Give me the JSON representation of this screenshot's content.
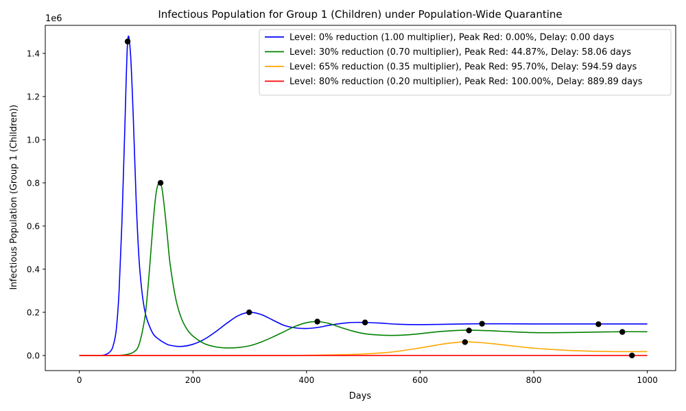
{
  "chart_data": {
    "type": "line",
    "title": "Infectious Population for Group 1 (Children) under Population-Wide Quarantine",
    "xlabel": "Days",
    "ylabel": "Infectious Population (Group 1 (Children))",
    "y_offset_label": "1e6",
    "xlim": [
      -60,
      1050
    ],
    "ylim": [
      -0.07,
      1.53
    ],
    "x_ticks": [
      0,
      200,
      400,
      600,
      800,
      1000
    ],
    "x_tick_labels": [
      "0",
      "200",
      "400",
      "600",
      "800",
      "1000"
    ],
    "y_ticks": [
      0.0,
      0.2,
      0.4,
      0.6,
      0.8,
      1.0,
      1.2,
      1.4
    ],
    "y_tick_labels": [
      "0.0",
      "0.2",
      "0.4",
      "0.6",
      "0.8",
      "1.0",
      "1.2",
      "1.4"
    ],
    "grid": false,
    "legend_position": "top-right",
    "series": [
      {
        "name": "Level: 0% reduction (1.00 multiplier), Peak Red: 0.00%, Delay: 0.00 days",
        "color": "#0000ff",
        "x": [
          0,
          30,
          45,
          55,
          60,
          65,
          70,
          75,
          80,
          85,
          90,
          95,
          100,
          105,
          110,
          115,
          120,
          130,
          140,
          150,
          160,
          180,
          200,
          220,
          240,
          260,
          280,
          300,
          320,
          340,
          360,
          380,
          400,
          420,
          440,
          460,
          480,
          500,
          530,
          560,
          600,
          650,
          700,
          750,
          800,
          850,
          900,
          950,
          1000
        ],
        "y": [
          0.0,
          0.0,
          0.003,
          0.02,
          0.05,
          0.12,
          0.3,
          0.62,
          1.05,
          1.455,
          1.4,
          1.1,
          0.72,
          0.45,
          0.3,
          0.21,
          0.16,
          0.1,
          0.075,
          0.058,
          0.047,
          0.042,
          0.052,
          0.075,
          0.11,
          0.15,
          0.185,
          0.2,
          0.19,
          0.165,
          0.14,
          0.128,
          0.125,
          0.13,
          0.14,
          0.148,
          0.153,
          0.153,
          0.15,
          0.145,
          0.143,
          0.145,
          0.147,
          0.147,
          0.146,
          0.146,
          0.146,
          0.146,
          0.146
        ]
      },
      {
        "name": "Level: 30% reduction (0.70 multiplier), Peak Red: 44.87%, Delay: 58.06 days",
        "color": "#008000",
        "x": [
          0,
          60,
          80,
          95,
          105,
          115,
          120,
          125,
          130,
          135,
          140,
          145,
          150,
          155,
          160,
          170,
          180,
          190,
          200,
          220,
          240,
          260,
          280,
          300,
          320,
          340,
          360,
          380,
          400,
          420,
          440,
          460,
          480,
          500,
          520,
          550,
          580,
          610,
          640,
          680,
          720,
          760,
          800,
          850,
          900,
          950,
          1000
        ],
        "y": [
          0.0,
          0.0,
          0.003,
          0.015,
          0.05,
          0.17,
          0.29,
          0.45,
          0.62,
          0.75,
          0.8,
          0.78,
          0.68,
          0.55,
          0.42,
          0.26,
          0.17,
          0.12,
          0.09,
          0.055,
          0.04,
          0.035,
          0.037,
          0.045,
          0.062,
          0.085,
          0.11,
          0.135,
          0.152,
          0.157,
          0.148,
          0.13,
          0.114,
          0.102,
          0.096,
          0.093,
          0.096,
          0.104,
          0.112,
          0.117,
          0.115,
          0.11,
          0.106,
          0.106,
          0.108,
          0.11,
          0.11
        ]
      },
      {
        "name": "Level: 65% reduction (0.35 multiplier), Peak Red: 95.70%, Delay: 594.59 days",
        "color": "#ffa500",
        "x": [
          0,
          200,
          350,
          400,
          450,
          500,
          550,
          600,
          640,
          670,
          680,
          700,
          730,
          760,
          800,
          850,
          900,
          950,
          1000
        ],
        "y": [
          0.0,
          0.0,
          0.0,
          0.001,
          0.003,
          0.007,
          0.016,
          0.035,
          0.053,
          0.062,
          0.063,
          0.061,
          0.054,
          0.045,
          0.034,
          0.025,
          0.02,
          0.018,
          0.018
        ]
      },
      {
        "name": "Level: 80% reduction (0.20 multiplier), Peak Red: 100.00%, Delay: 889.89 days",
        "color": "#ff0000",
        "x": [
          0,
          500,
          1000
        ],
        "y": [
          0.0,
          0.0,
          0.0
        ]
      }
    ],
    "markers": [
      {
        "x": 85,
        "y": 1.455
      },
      {
        "x": 143,
        "y": 0.8
      },
      {
        "x": 299,
        "y": 0.2
      },
      {
        "x": 419,
        "y": 0.157
      },
      {
        "x": 503,
        "y": 0.153
      },
      {
        "x": 679,
        "y": 0.062
      },
      {
        "x": 686,
        "y": 0.116
      },
      {
        "x": 709,
        "y": 0.147
      },
      {
        "x": 914,
        "y": 0.145
      },
      {
        "x": 956,
        "y": 0.109
      },
      {
        "x": 973,
        "y": 0.0
      }
    ]
  }
}
